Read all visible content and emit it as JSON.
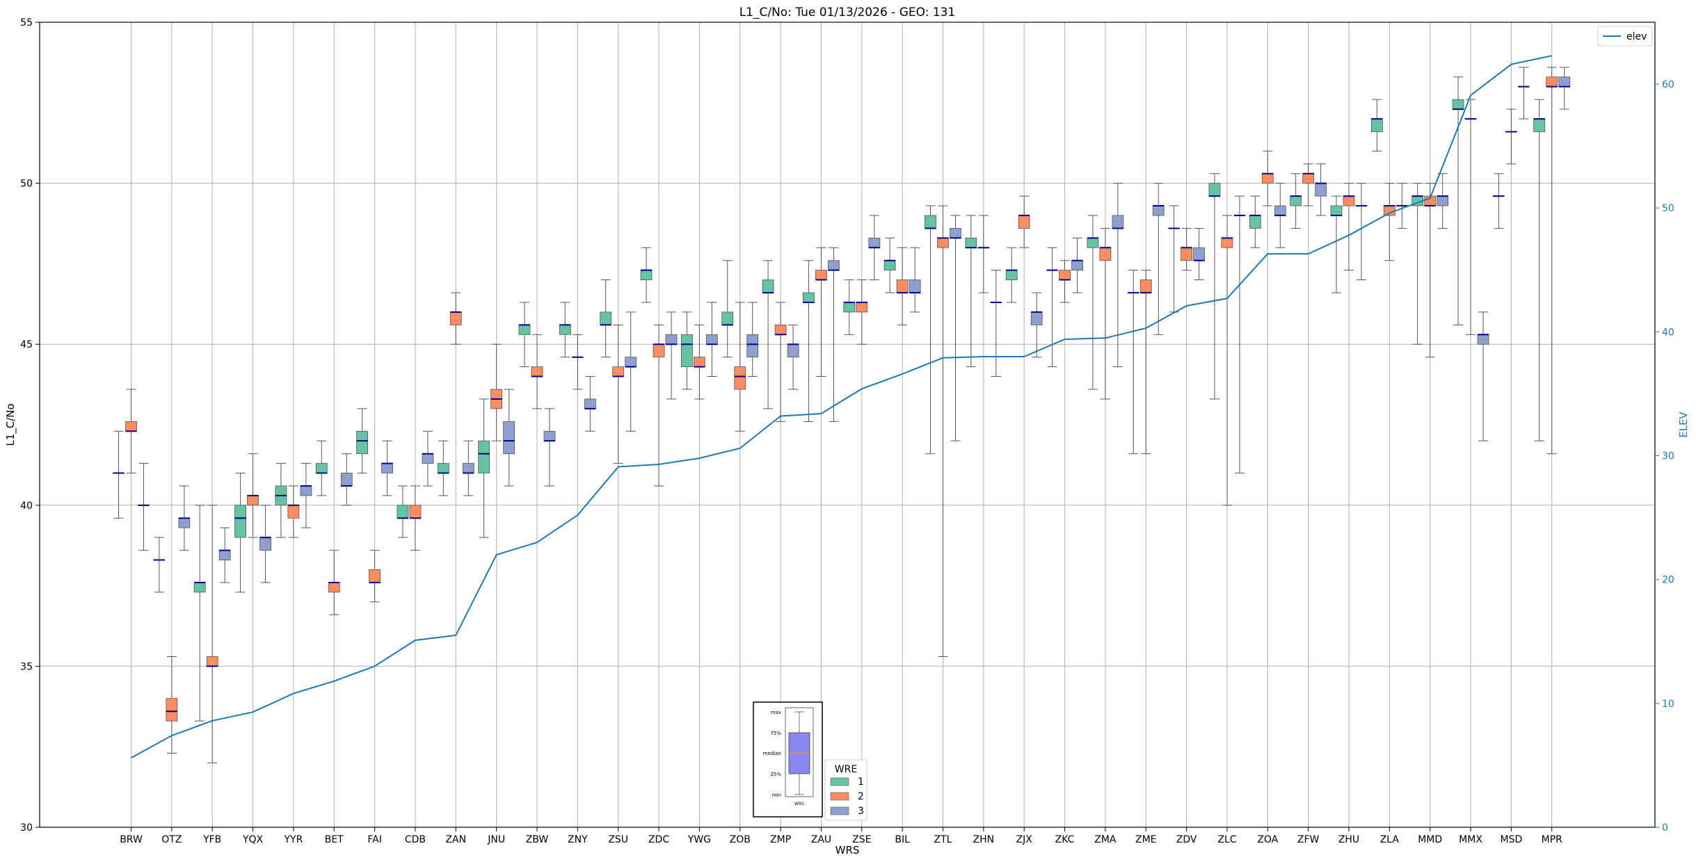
{
  "chart_data": {
    "type": "boxplot",
    "title": "L1_C/No: Tue 01/13/2026 - GEO: 131",
    "xlabel": "WRS",
    "ylabel": "L1_C/No",
    "y2label": "ELEV",
    "ylim": [
      30,
      55
    ],
    "y2lim": [
      0,
      65
    ],
    "yticks": [
      "30",
      "35",
      "40",
      "45",
      "50",
      "55"
    ],
    "y2ticks": [
      "0",
      "10",
      "20",
      "30",
      "40",
      "50",
      "60"
    ],
    "grid": true,
    "categories": [
      "BRW",
      "OTZ",
      "YFB",
      "YQX",
      "YYR",
      "BET",
      "FAI",
      "CDB",
      "ZAN",
      "JNU",
      "ZBW",
      "ZNY",
      "ZSU",
      "ZDC",
      "YWG",
      "ZOB",
      "ZMP",
      "ZAU",
      "ZSE",
      "BIL",
      "ZTL",
      "ZHN",
      "ZJX",
      "ZKC",
      "ZMA",
      "ZME",
      "ZDV",
      "ZLC",
      "ZOA",
      "ZFW",
      "ZHU",
      "ZLA",
      "MMD",
      "MMX",
      "MSD",
      "MPR"
    ],
    "wre_colors": {
      "1": "#66c2a5",
      "2": "#fc8d62",
      "3": "#8da0cb"
    },
    "boxes": [
      {
        "wrs": "BRW",
        "wre": 1,
        "min": 39.6,
        "q1": 41.0,
        "median": 41.0,
        "q3": 41.0,
        "max": 42.3
      },
      {
        "wrs": "BRW",
        "wre": 2,
        "min": 41.0,
        "q1": 42.3,
        "median": 42.3,
        "q3": 42.6,
        "max": 43.6
      },
      {
        "wrs": "BRW",
        "wre": 3,
        "min": 38.6,
        "q1": 40.0,
        "median": 40.0,
        "q3": 40.0,
        "max": 41.3
      },
      {
        "wrs": "OTZ",
        "wre": 1,
        "min": 37.3,
        "q1": 38.3,
        "median": 38.3,
        "q3": 38.3,
        "max": 39.0
      },
      {
        "wrs": "OTZ",
        "wre": 2,
        "min": 32.3,
        "q1": 33.3,
        "median": 33.6,
        "q3": 34.0,
        "max": 35.3
      },
      {
        "wrs": "OTZ",
        "wre": 3,
        "min": 38.6,
        "q1": 39.3,
        "median": 39.6,
        "q3": 39.6,
        "max": 40.6
      },
      {
        "wrs": "YFB",
        "wre": 1,
        "min": 33.3,
        "q1": 37.3,
        "median": 37.6,
        "q3": 37.6,
        "max": 40.0
      },
      {
        "wrs": "YFB",
        "wre": 2,
        "min": 32.0,
        "q1": 35.0,
        "median": 35.0,
        "q3": 35.3,
        "max": 40.0
      },
      {
        "wrs": "YFB",
        "wre": 3,
        "min": 37.6,
        "q1": 38.3,
        "median": 38.6,
        "q3": 38.6,
        "max": 39.3
      },
      {
        "wrs": "YQX",
        "wre": 1,
        "min": 37.3,
        "q1": 39.0,
        "median": 39.6,
        "q3": 40.0,
        "max": 41.0
      },
      {
        "wrs": "YQX",
        "wre": 2,
        "min": 39.0,
        "q1": 40.0,
        "median": 40.3,
        "q3": 40.3,
        "max": 41.6
      },
      {
        "wrs": "YQX",
        "wre": 3,
        "min": 37.6,
        "q1": 38.6,
        "median": 39.0,
        "q3": 39.0,
        "max": 40.0
      },
      {
        "wrs": "YYR",
        "wre": 1,
        "min": 39.0,
        "q1": 40.0,
        "median": 40.3,
        "q3": 40.6,
        "max": 41.3
      },
      {
        "wrs": "YYR",
        "wre": 2,
        "min": 39.0,
        "q1": 39.6,
        "median": 40.0,
        "q3": 40.0,
        "max": 40.6
      },
      {
        "wrs": "YYR",
        "wre": 3,
        "min": 39.3,
        "q1": 40.3,
        "median": 40.6,
        "q3": 40.6,
        "max": 41.3
      },
      {
        "wrs": "BET",
        "wre": 1,
        "min": 40.3,
        "q1": 41.0,
        "median": 41.0,
        "q3": 41.3,
        "max": 42.0
      },
      {
        "wrs": "BET",
        "wre": 2,
        "min": 36.6,
        "q1": 37.3,
        "median": 37.6,
        "q3": 37.6,
        "max": 38.6
      },
      {
        "wrs": "BET",
        "wre": 3,
        "min": 40.0,
        "q1": 40.6,
        "median": 40.6,
        "q3": 41.0,
        "max": 41.6
      },
      {
        "wrs": "FAI",
        "wre": 1,
        "min": 41.0,
        "q1": 41.6,
        "median": 42.0,
        "q3": 42.3,
        "max": 43.0
      },
      {
        "wrs": "FAI",
        "wre": 2,
        "min": 37.0,
        "q1": 37.6,
        "median": 37.6,
        "q3": 38.0,
        "max": 38.6
      },
      {
        "wrs": "FAI",
        "wre": 3,
        "min": 40.3,
        "q1": 41.0,
        "median": 41.3,
        "q3": 41.3,
        "max": 42.0
      },
      {
        "wrs": "CDB",
        "wre": 1,
        "min": 39.0,
        "q1": 39.6,
        "median": 39.6,
        "q3": 40.0,
        "max": 40.6
      },
      {
        "wrs": "CDB",
        "wre": 2,
        "min": 38.6,
        "q1": 39.6,
        "median": 39.6,
        "q3": 40.0,
        "max": 40.6
      },
      {
        "wrs": "CDB",
        "wre": 3,
        "min": 40.6,
        "q1": 41.3,
        "median": 41.6,
        "q3": 41.6,
        "max": 42.3
      },
      {
        "wrs": "ZAN",
        "wre": 1,
        "min": 40.3,
        "q1": 41.0,
        "median": 41.0,
        "q3": 41.3,
        "max": 42.0
      },
      {
        "wrs": "ZAN",
        "wre": 2,
        "min": 45.0,
        "q1": 45.6,
        "median": 46.0,
        "q3": 46.0,
        "max": 46.6
      },
      {
        "wrs": "ZAN",
        "wre": 3,
        "min": 40.3,
        "q1": 41.0,
        "median": 41.0,
        "q3": 41.3,
        "max": 42.0
      },
      {
        "wrs": "JNU",
        "wre": 1,
        "min": 39.0,
        "q1": 41.0,
        "median": 41.6,
        "q3": 42.0,
        "max": 43.3
      },
      {
        "wrs": "JNU",
        "wre": 2,
        "min": 42.0,
        "q1": 43.0,
        "median": 43.3,
        "q3": 43.6,
        "max": 45.0
      },
      {
        "wrs": "JNU",
        "wre": 3,
        "min": 40.6,
        "q1": 41.6,
        "median": 42.0,
        "q3": 42.6,
        "max": 43.6
      },
      {
        "wrs": "ZBW",
        "wre": 1,
        "min": 44.3,
        "q1": 45.3,
        "median": 45.6,
        "q3": 45.6,
        "max": 46.3
      },
      {
        "wrs": "ZBW",
        "wre": 2,
        "min": 43.0,
        "q1": 44.0,
        "median": 44.0,
        "q3": 44.3,
        "max": 45.3
      },
      {
        "wrs": "ZBW",
        "wre": 3,
        "min": 40.6,
        "q1": 42.0,
        "median": 42.0,
        "q3": 42.3,
        "max": 43.0
      },
      {
        "wrs": "ZNY",
        "wre": 1,
        "min": 44.6,
        "q1": 45.3,
        "median": 45.6,
        "q3": 45.6,
        "max": 46.3
      },
      {
        "wrs": "ZNY",
        "wre": 2,
        "min": 43.6,
        "q1": 44.6,
        "median": 44.6,
        "q3": 44.6,
        "max": 45.3
      },
      {
        "wrs": "ZNY",
        "wre": 3,
        "min": 42.3,
        "q1": 43.0,
        "median": 43.0,
        "q3": 43.3,
        "max": 44.0
      },
      {
        "wrs": "ZSU",
        "wre": 1,
        "min": 44.6,
        "q1": 45.6,
        "median": 45.6,
        "q3": 46.0,
        "max": 47.0
      },
      {
        "wrs": "ZSU",
        "wre": 2,
        "min": 41.3,
        "q1": 44.0,
        "median": 44.0,
        "q3": 44.3,
        "max": 45.6
      },
      {
        "wrs": "ZSU",
        "wre": 3,
        "min": 42.3,
        "q1": 44.3,
        "median": 44.3,
        "q3": 44.6,
        "max": 46.0
      },
      {
        "wrs": "ZDC",
        "wre": 1,
        "min": 46.3,
        "q1": 47.0,
        "median": 47.3,
        "q3": 47.3,
        "max": 48.0
      },
      {
        "wrs": "ZDC",
        "wre": 2,
        "min": 40.6,
        "q1": 44.6,
        "median": 45.0,
        "q3": 45.0,
        "max": 45.6
      },
      {
        "wrs": "ZDC",
        "wre": 3,
        "min": 43.3,
        "q1": 45.0,
        "median": 45.0,
        "q3": 45.3,
        "max": 46.0
      },
      {
        "wrs": "YWG",
        "wre": 1,
        "min": 43.6,
        "q1": 44.3,
        "median": 45.0,
        "q3": 45.3,
        "max": 46.0
      },
      {
        "wrs": "YWG",
        "wre": 2,
        "min": 43.3,
        "q1": 44.3,
        "median": 44.3,
        "q3": 44.6,
        "max": 45.6
      },
      {
        "wrs": "YWG",
        "wre": 3,
        "min": 44.0,
        "q1": 45.0,
        "median": 45.0,
        "q3": 45.3,
        "max": 46.3
      },
      {
        "wrs": "ZOB",
        "wre": 1,
        "min": 44.6,
        "q1": 45.6,
        "median": 45.6,
        "q3": 46.0,
        "max": 47.6
      },
      {
        "wrs": "ZOB",
        "wre": 2,
        "min": 42.3,
        "q1": 43.6,
        "median": 44.0,
        "q3": 44.3,
        "max": 46.3
      },
      {
        "wrs": "ZOB",
        "wre": 3,
        "min": 44.0,
        "q1": 44.6,
        "median": 45.0,
        "q3": 45.3,
        "max": 46.3
      },
      {
        "wrs": "ZMP",
        "wre": 1,
        "min": 43.0,
        "q1": 46.6,
        "median": 46.6,
        "q3": 47.0,
        "max": 47.6
      },
      {
        "wrs": "ZMP",
        "wre": 2,
        "min": 42.6,
        "q1": 45.3,
        "median": 45.3,
        "q3": 45.6,
        "max": 46.3
      },
      {
        "wrs": "ZMP",
        "wre": 3,
        "min": 43.6,
        "q1": 44.6,
        "median": 45.0,
        "q3": 45.0,
        "max": 45.6
      },
      {
        "wrs": "ZAU",
        "wre": 1,
        "min": 42.6,
        "q1": 46.3,
        "median": 46.3,
        "q3": 46.6,
        "max": 47.6
      },
      {
        "wrs": "ZAU",
        "wre": 2,
        "min": 44.0,
        "q1": 47.0,
        "median": 47.0,
        "q3": 47.3,
        "max": 48.0
      },
      {
        "wrs": "ZAU",
        "wre": 3,
        "min": 42.6,
        "q1": 47.3,
        "median": 47.3,
        "q3": 47.6,
        "max": 48.0
      },
      {
        "wrs": "ZSE",
        "wre": 1,
        "min": 45.3,
        "q1": 46.0,
        "median": 46.3,
        "q3": 46.3,
        "max": 47.0
      },
      {
        "wrs": "ZSE",
        "wre": 2,
        "min": 45.0,
        "q1": 46.0,
        "median": 46.3,
        "q3": 46.3,
        "max": 47.0
      },
      {
        "wrs": "ZSE",
        "wre": 3,
        "min": 47.0,
        "q1": 48.0,
        "median": 48.0,
        "q3": 48.3,
        "max": 49.0
      },
      {
        "wrs": "BIL",
        "wre": 1,
        "min": 46.6,
        "q1": 47.3,
        "median": 47.6,
        "q3": 47.6,
        "max": 48.3
      },
      {
        "wrs": "BIL",
        "wre": 2,
        "min": 45.6,
        "q1": 46.6,
        "median": 46.6,
        "q3": 47.0,
        "max": 48.0
      },
      {
        "wrs": "BIL",
        "wre": 3,
        "min": 46.0,
        "q1": 46.6,
        "median": 46.6,
        "q3": 47.0,
        "max": 48.0
      },
      {
        "wrs": "ZTL",
        "wre": 1,
        "min": 41.6,
        "q1": 48.6,
        "median": 48.6,
        "q3": 49.0,
        "max": 49.3
      },
      {
        "wrs": "ZTL",
        "wre": 2,
        "min": 35.3,
        "q1": 48.0,
        "median": 48.3,
        "q3": 48.3,
        "max": 49.3
      },
      {
        "wrs": "ZTL",
        "wre": 3,
        "min": 42.0,
        "q1": 48.3,
        "median": 48.3,
        "q3": 48.6,
        "max": 49.0
      },
      {
        "wrs": "ZHN",
        "wre": 1,
        "min": 44.3,
        "q1": 48.0,
        "median": 48.0,
        "q3": 48.3,
        "max": 49.0
      },
      {
        "wrs": "ZHN",
        "wre": 2,
        "min": 46.6,
        "q1": 48.0,
        "median": 48.0,
        "q3": 48.0,
        "max": 49.0
      },
      {
        "wrs": "ZHN",
        "wre": 3,
        "min": 44.0,
        "q1": 46.3,
        "median": 46.3,
        "q3": 46.3,
        "max": 47.3
      },
      {
        "wrs": "ZJX",
        "wre": 1,
        "min": 46.3,
        "q1": 47.0,
        "median": 47.3,
        "q3": 47.3,
        "max": 48.0
      },
      {
        "wrs": "ZJX",
        "wre": 2,
        "min": 48.0,
        "q1": 48.6,
        "median": 49.0,
        "q3": 49.0,
        "max": 49.6
      },
      {
        "wrs": "ZJX",
        "wre": 3,
        "min": 44.6,
        "q1": 45.6,
        "median": 46.0,
        "q3": 46.0,
        "max": 46.6
      },
      {
        "wrs": "ZKC",
        "wre": 1,
        "min": 44.3,
        "q1": 47.3,
        "median": 47.3,
        "q3": 47.3,
        "max": 48.0
      },
      {
        "wrs": "ZKC",
        "wre": 2,
        "min": 46.3,
        "q1": 47.0,
        "median": 47.0,
        "q3": 47.3,
        "max": 47.6
      },
      {
        "wrs": "ZKC",
        "wre": 3,
        "min": 46.6,
        "q1": 47.3,
        "median": 47.6,
        "q3": 47.6,
        "max": 48.3
      },
      {
        "wrs": "ZMA",
        "wre": 1,
        "min": 43.6,
        "q1": 48.0,
        "median": 48.3,
        "q3": 48.3,
        "max": 49.0
      },
      {
        "wrs": "ZMA",
        "wre": 2,
        "min": 43.3,
        "q1": 47.6,
        "median": 48.0,
        "q3": 48.0,
        "max": 48.6
      },
      {
        "wrs": "ZMA",
        "wre": 3,
        "min": 44.3,
        "q1": 48.6,
        "median": 48.6,
        "q3": 49.0,
        "max": 50.0
      },
      {
        "wrs": "ZME",
        "wre": 1,
        "min": 41.6,
        "q1": 46.6,
        "median": 46.6,
        "q3": 46.6,
        "max": 47.3
      },
      {
        "wrs": "ZME",
        "wre": 2,
        "min": 41.6,
        "q1": 46.6,
        "median": 46.6,
        "q3": 47.0,
        "max": 47.3
      },
      {
        "wrs": "ZME",
        "wre": 3,
        "min": 45.3,
        "q1": 49.0,
        "median": 49.3,
        "q3": 49.3,
        "max": 50.0
      },
      {
        "wrs": "ZDV",
        "wre": 1,
        "min": 46.0,
        "q1": 48.6,
        "median": 48.6,
        "q3": 48.6,
        "max": 49.3
      },
      {
        "wrs": "ZDV",
        "wre": 2,
        "min": 47.3,
        "q1": 47.6,
        "median": 48.0,
        "q3": 48.0,
        "max": 48.6
      },
      {
        "wrs": "ZDV",
        "wre": 3,
        "min": 47.0,
        "q1": 47.6,
        "median": 47.6,
        "q3": 48.0,
        "max": 48.6
      },
      {
        "wrs": "ZLC",
        "wre": 1,
        "min": 43.3,
        "q1": 49.6,
        "median": 49.6,
        "q3": 50.0,
        "max": 50.3
      },
      {
        "wrs": "ZLC",
        "wre": 2,
        "min": 40.0,
        "q1": 48.0,
        "median": 48.3,
        "q3": 48.3,
        "max": 49.0
      },
      {
        "wrs": "ZLC",
        "wre": 3,
        "min": 41.0,
        "q1": 49.0,
        "median": 49.0,
        "q3": 49.0,
        "max": 49.6
      },
      {
        "wrs": "ZOA",
        "wre": 1,
        "min": 48.0,
        "q1": 48.6,
        "median": 49.0,
        "q3": 49.0,
        "max": 49.6
      },
      {
        "wrs": "ZOA",
        "wre": 2,
        "min": 49.3,
        "q1": 50.0,
        "median": 50.3,
        "q3": 50.3,
        "max": 51.0
      },
      {
        "wrs": "ZOA",
        "wre": 3,
        "min": 48.0,
        "q1": 49.0,
        "median": 49.0,
        "q3": 49.3,
        "max": 50.0
      },
      {
        "wrs": "ZFW",
        "wre": 1,
        "min": 48.6,
        "q1": 49.3,
        "median": 49.6,
        "q3": 49.6,
        "max": 50.3
      },
      {
        "wrs": "ZFW",
        "wre": 2,
        "min": 49.3,
        "q1": 50.0,
        "median": 50.3,
        "q3": 50.3,
        "max": 50.6
      },
      {
        "wrs": "ZFW",
        "wre": 3,
        "min": 49.0,
        "q1": 49.6,
        "median": 50.0,
        "q3": 50.0,
        "max": 50.6
      },
      {
        "wrs": "ZHU",
        "wre": 1,
        "min": 46.6,
        "q1": 49.0,
        "median": 49.0,
        "q3": 49.3,
        "max": 49.6
      },
      {
        "wrs": "ZHU",
        "wre": 2,
        "min": 47.3,
        "q1": 49.3,
        "median": 49.6,
        "q3": 49.6,
        "max": 50.0
      },
      {
        "wrs": "ZHU",
        "wre": 3,
        "min": 47.0,
        "q1": 49.3,
        "median": 49.3,
        "q3": 49.3,
        "max": 50.0
      },
      {
        "wrs": "ZLA",
        "wre": 1,
        "min": 51.0,
        "q1": 51.6,
        "median": 52.0,
        "q3": 52.0,
        "max": 52.6
      },
      {
        "wrs": "ZLA",
        "wre": 2,
        "min": 47.6,
        "q1": 49.0,
        "median": 49.3,
        "q3": 49.3,
        "max": 50.0
      },
      {
        "wrs": "ZLA",
        "wre": 3,
        "min": 48.6,
        "q1": 49.3,
        "median": 49.3,
        "q3": 49.3,
        "max": 50.0
      },
      {
        "wrs": "MMD",
        "wre": 1,
        "min": 45.0,
        "q1": 49.3,
        "median": 49.6,
        "q3": 49.6,
        "max": 50.0
      },
      {
        "wrs": "MMD",
        "wre": 2,
        "min": 44.6,
        "q1": 49.3,
        "median": 49.3,
        "q3": 49.6,
        "max": 50.0
      },
      {
        "wrs": "MMD",
        "wre": 3,
        "min": 48.6,
        "q1": 49.3,
        "median": 49.6,
        "q3": 49.6,
        "max": 50.3
      },
      {
        "wrs": "MMX",
        "wre": 1,
        "min": 45.6,
        "q1": 52.3,
        "median": 52.3,
        "q3": 52.6,
        "max": 53.3
      },
      {
        "wrs": "MMX",
        "wre": 2,
        "min": 45.3,
        "q1": 52.0,
        "median": 52.0,
        "q3": 52.0,
        "max": 52.6
      },
      {
        "wrs": "MMX",
        "wre": 3,
        "min": 42.0,
        "q1": 45.0,
        "median": 45.3,
        "q3": 45.3,
        "max": 46.0
      },
      {
        "wrs": "MSD",
        "wre": 1,
        "min": 48.6,
        "q1": 49.6,
        "median": 49.6,
        "q3": 49.6,
        "max": 50.3
      },
      {
        "wrs": "MSD",
        "wre": 2,
        "min": 50.6,
        "q1": 51.6,
        "median": 51.6,
        "q3": 51.6,
        "max": 52.3
      },
      {
        "wrs": "MSD",
        "wre": 3,
        "min": 52.0,
        "q1": 53.0,
        "median": 53.0,
        "q3": 53.0,
        "max": 53.6
      },
      {
        "wrs": "MPR",
        "wre": 1,
        "min": 42.0,
        "q1": 51.6,
        "median": 52.0,
        "q3": 52.0,
        "max": 52.6
      },
      {
        "wrs": "MPR",
        "wre": 2,
        "min": 41.6,
        "q1": 53.0,
        "median": 53.0,
        "q3": 53.3,
        "max": 53.6
      },
      {
        "wrs": "MPR",
        "wre": 3,
        "min": 52.3,
        "q1": 53.0,
        "median": 53.0,
        "q3": 53.3,
        "max": 53.6
      }
    ],
    "elev_series": {
      "name": "elev",
      "color": "#1f77b4",
      "values": [
        5.6,
        7.4,
        8.6,
        9.3,
        10.8,
        11.8,
        13.0,
        15.1,
        15.5,
        22.0,
        23.0,
        25.2,
        29.1,
        29.3,
        29.8,
        30.6,
        33.2,
        33.4,
        35.4,
        36.6,
        37.9,
        38.0,
        38.0,
        39.4,
        39.5,
        40.3,
        42.1,
        42.7,
        46.3,
        46.3,
        47.8,
        49.6,
        50.8,
        59.1,
        61.6,
        62.3
      ]
    },
    "legend_elev": {
      "label": "elev",
      "placement": "top-right"
    },
    "legend_wre": {
      "title": "WRE",
      "placement": "lower-center",
      "items": [
        {
          "key": "1",
          "label": "1",
          "color": "#66c2a5"
        },
        {
          "key": "2",
          "label": "2",
          "color": "#fc8d62"
        },
        {
          "key": "3",
          "label": "3",
          "color": "#8da0cb"
        }
      ]
    },
    "key_inset": {
      "labels": [
        "max",
        "75%",
        "median",
        "25%",
        "min"
      ],
      "caption": "WRS",
      "box_color": "#8888ee",
      "median_color": "#ff9900"
    }
  }
}
